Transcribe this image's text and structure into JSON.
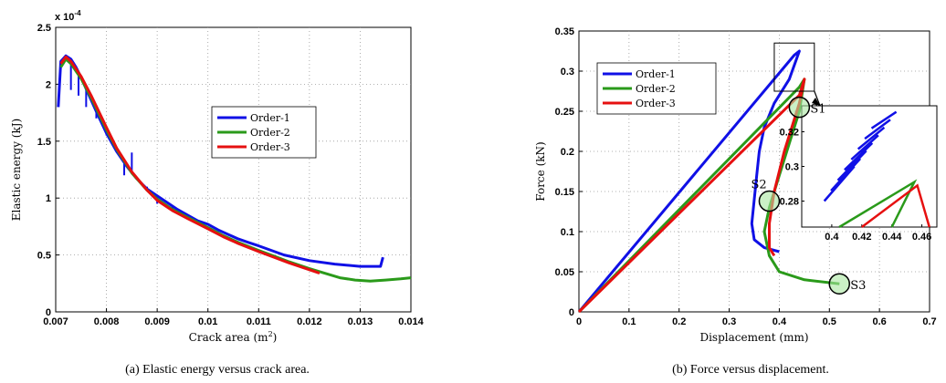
{
  "chart_data": [
    {
      "type": "line",
      "caption": "(a) Elastic energy versus crack area.",
      "xlabel": "Crack area (m",
      "xlabel_sup": "2",
      "xlabel_end": ")",
      "ylabel": "Elastic energy (kJ)",
      "exponent_label": "x 10",
      "exponent_power": "-4",
      "xlim": [
        0.007,
        0.014
      ],
      "ylim": [
        0,
        2.5
      ],
      "x_ticks": [
        "0.007",
        "0.008",
        "0.009",
        "0.01",
        "0.011",
        "0.012",
        "0.013",
        "0.014"
      ],
      "y_ticks": [
        "0",
        "0.5",
        "1",
        "1.5",
        "2",
        "2.5"
      ],
      "grid": true,
      "legend_position": "right-middle",
      "series": [
        {
          "name": "Order-1",
          "color": "#1010e6",
          "points": [
            [
              0.00705,
              1.8
            ],
            [
              0.0071,
              2.2
            ],
            [
              0.0072,
              2.25
            ],
            [
              0.0073,
              2.22
            ],
            [
              0.0074,
              2.15
            ],
            [
              0.0075,
              2.06
            ],
            [
              0.0076,
              1.96
            ],
            [
              0.0077,
              1.86
            ],
            [
              0.0078,
              1.76
            ],
            [
              0.008,
              1.57
            ],
            [
              0.0082,
              1.41
            ],
            [
              0.0084,
              1.28
            ],
            [
              0.0086,
              1.17
            ],
            [
              0.0088,
              1.08
            ],
            [
              0.009,
              1.02
            ],
            [
              0.0092,
              0.96
            ],
            [
              0.0094,
              0.9
            ],
            [
              0.0096,
              0.85
            ],
            [
              0.0098,
              0.8
            ],
            [
              0.01,
              0.77
            ],
            [
              0.0102,
              0.72
            ],
            [
              0.0104,
              0.68
            ],
            [
              0.0106,
              0.64
            ],
            [
              0.0108,
              0.61
            ],
            [
              0.011,
              0.58
            ],
            [
              0.0115,
              0.5
            ],
            [
              0.012,
              0.45
            ],
            [
              0.0125,
              0.42
            ],
            [
              0.013,
              0.4
            ],
            [
              0.0134,
              0.4
            ],
            [
              0.01345,
              0.48
            ]
          ],
          "spikes": [
            [
              0.0073,
              1.95
            ],
            [
              0.00745,
              1.9
            ],
            [
              0.0076,
              1.8
            ],
            [
              0.0078,
              1.7
            ],
            [
              0.008,
              1.55
            ],
            [
              0.0082,
              1.45
            ],
            [
              0.00835,
              1.2
            ],
            [
              0.0085,
              1.4
            ],
            [
              0.0088,
              1.1
            ],
            [
              0.009,
              0.95
            ],
            [
              0.0093,
              0.9
            ],
            [
              0.0097,
              0.83
            ]
          ]
        },
        {
          "name": "Order-2",
          "color": "#2a9a1a",
          "points": [
            [
              0.0071,
              2.15
            ],
            [
              0.0072,
              2.22
            ],
            [
              0.0073,
              2.18
            ],
            [
              0.0075,
              2.05
            ],
            [
              0.0077,
              1.88
            ],
            [
              0.008,
              1.6
            ],
            [
              0.0082,
              1.43
            ],
            [
              0.0085,
              1.22
            ],
            [
              0.0088,
              1.07
            ],
            [
              0.009,
              0.99
            ],
            [
              0.0093,
              0.9
            ],
            [
              0.0096,
              0.83
            ],
            [
              0.01,
              0.74
            ],
            [
              0.0103,
              0.67
            ],
            [
              0.0106,
              0.61
            ],
            [
              0.011,
              0.54
            ],
            [
              0.0113,
              0.49
            ],
            [
              0.0116,
              0.44
            ],
            [
              0.012,
              0.38
            ],
            [
              0.0123,
              0.34
            ],
            [
              0.0126,
              0.3
            ],
            [
              0.0129,
              0.28
            ],
            [
              0.0132,
              0.27
            ],
            [
              0.0135,
              0.28
            ],
            [
              0.0138,
              0.29
            ],
            [
              0.014,
              0.3
            ]
          ]
        },
        {
          "name": "Order-3",
          "color": "#e61010",
          "points": [
            [
              0.0071,
              2.18
            ],
            [
              0.0072,
              2.24
            ],
            [
              0.0073,
              2.2
            ],
            [
              0.0075,
              2.07
            ],
            [
              0.0077,
              1.9
            ],
            [
              0.008,
              1.62
            ],
            [
              0.0082,
              1.44
            ],
            [
              0.0085,
              1.23
            ],
            [
              0.0088,
              1.07
            ],
            [
              0.009,
              0.98
            ],
            [
              0.0093,
              0.89
            ],
            [
              0.0096,
              0.82
            ],
            [
              0.01,
              0.73
            ],
            [
              0.0103,
              0.66
            ],
            [
              0.0106,
              0.6
            ],
            [
              0.011,
              0.53
            ],
            [
              0.0113,
              0.48
            ],
            [
              0.0116,
              0.43
            ],
            [
              0.012,
              0.37
            ],
            [
              0.0122,
              0.34
            ]
          ]
        }
      ]
    },
    {
      "type": "line",
      "caption": "(b) Force versus displacement.",
      "xlabel": "Displacement (mm)",
      "ylabel": "Force (kN)",
      "xlim": [
        0,
        0.7
      ],
      "ylim": [
        0,
        0.35
      ],
      "x_ticks": [
        "0",
        "0.1",
        "0.2",
        "0.3",
        "0.4",
        "0.5",
        "0.6",
        "0.7"
      ],
      "y_ticks": [
        "0",
        "0.05",
        "0.1",
        "0.15",
        "0.2",
        "0.25",
        "0.3",
        "0.35"
      ],
      "grid": true,
      "legend_position": "top-left",
      "annotations": [
        {
          "label": "S1",
          "x": 0.44,
          "y": 0.255
        },
        {
          "label": "S2",
          "x": 0.38,
          "y": 0.138
        },
        {
          "label": "S3",
          "x": 0.52,
          "y": 0.035
        }
      ],
      "inset": {
        "xlim": [
          0.38,
          0.47
        ],
        "ylim": [
          0.265,
          0.335
        ],
        "x_ticks": [
          "0.4",
          "0.42",
          "0.44",
          "0.46"
        ],
        "y_ticks": [
          "0.28",
          "0.3",
          "0.32"
        ]
      },
      "series": [
        {
          "name": "Order-1",
          "color": "#1010e6",
          "points": [
            [
              0,
              0
            ],
            [
              0.43,
              0.32
            ],
            [
              0.44,
              0.325
            ],
            [
              0.42,
              0.29
            ],
            [
              0.39,
              0.26
            ],
            [
              0.37,
              0.23
            ],
            [
              0.36,
              0.2
            ],
            [
              0.355,
              0.17
            ],
            [
              0.35,
              0.14
            ],
            [
              0.345,
              0.11
            ],
            [
              0.35,
              0.09
            ],
            [
              0.37,
              0.08
            ],
            [
              0.4,
              0.075
            ]
          ]
        },
        {
          "name": "Order-2",
          "color": "#2a9a1a",
          "points": [
            [
              0,
              0
            ],
            [
              0.44,
              0.28
            ],
            [
              0.45,
              0.29
            ],
            [
              0.44,
              0.25
            ],
            [
              0.42,
              0.21
            ],
            [
              0.4,
              0.17
            ],
            [
              0.38,
              0.13
            ],
            [
              0.37,
              0.1
            ],
            [
              0.38,
              0.07
            ],
            [
              0.4,
              0.05
            ],
            [
              0.45,
              0.04
            ],
            [
              0.52,
              0.035
            ]
          ]
        },
        {
          "name": "Order-3",
          "color": "#e61010",
          "points": [
            [
              0,
              0
            ],
            [
              0.44,
              0.27
            ],
            [
              0.45,
              0.29
            ],
            [
              0.44,
              0.26
            ],
            [
              0.41,
              0.2
            ],
            [
              0.39,
              0.15
            ],
            [
              0.38,
              0.11
            ],
            [
              0.38,
              0.08
            ],
            [
              0.39,
              0.07
            ]
          ]
        }
      ]
    }
  ]
}
